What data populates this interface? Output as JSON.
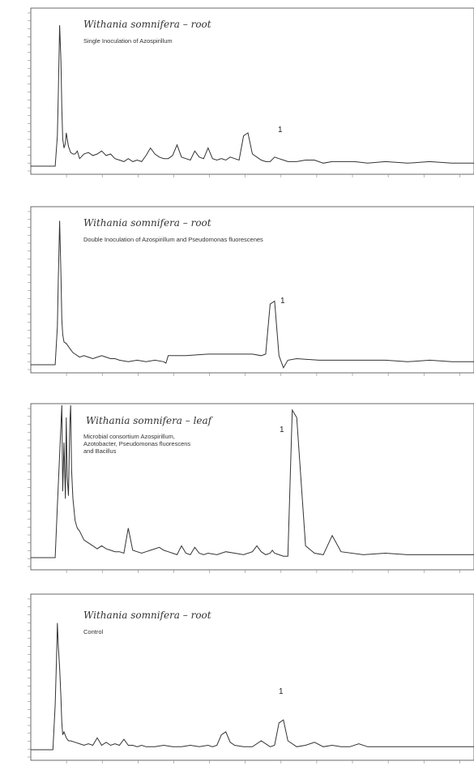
{
  "chart_data": [
    {
      "type": "line",
      "title": "Withania somnifera – root",
      "subtitle": "Single Inoculation of Azospirillum",
      "peak_label": "1",
      "line_color": "#333333",
      "xlim": [
        0,
        10
      ],
      "ylim": [
        0,
        100
      ],
      "series": [
        {
          "x": [
            0,
            0.55,
            0.6,
            0.62,
            0.65,
            0.68,
            0.7,
            0.72,
            0.75,
            0.78,
            0.8,
            0.85,
            0.9,
            0.95,
            1.0,
            1.05,
            1.1,
            1.2,
            1.3,
            1.4,
            1.5,
            1.6,
            1.7,
            1.8,
            1.9,
            2.0,
            2.1,
            2.2,
            2.3,
            2.4,
            2.5,
            2.6,
            2.7,
            2.8,
            2.9,
            3.0,
            3.1,
            3.2,
            3.3,
            3.4,
            3.5,
            3.6,
            3.7,
            3.8,
            3.9,
            4.0,
            4.1,
            4.2,
            4.3,
            4.4,
            4.5,
            4.6,
            4.7,
            4.8,
            4.9,
            5.0,
            5.1,
            5.2,
            5.3,
            5.4,
            5.5,
            5.6,
            5.7,
            5.8,
            6.0,
            6.2,
            6.4,
            6.6,
            6.8,
            7.0,
            7.3,
            7.6,
            8.0,
            8.5,
            9.0,
            9.5,
            10.0
          ],
          "y": [
            0,
            0,
            20,
            46,
            93,
            70,
            38,
            18,
            12,
            15,
            22,
            13,
            9,
            8,
            8,
            10,
            5,
            8,
            9,
            7,
            8,
            10,
            7,
            8,
            5,
            4,
            3,
            5,
            3,
            4,
            3,
            7,
            12,
            8,
            6,
            5,
            5,
            7,
            14,
            6,
            5,
            4,
            10,
            6,
            5,
            12,
            5,
            4,
            5,
            4,
            6,
            5,
            4,
            20,
            22,
            8,
            6,
            4,
            3,
            3,
            6,
            5,
            4,
            3,
            3,
            4,
            4,
            2,
            3,
            3,
            3,
            2,
            3,
            2,
            3,
            2,
            2
          ]
        }
      ]
    },
    {
      "type": "line",
      "title": "Withania somnifera – root",
      "subtitle": "Double Inoculation of Azospirillum and Pseudomonas fluorescenes",
      "peak_label": "1",
      "line_color": "#333333",
      "xlim": [
        0,
        10
      ],
      "ylim": [
        0,
        100
      ],
      "series": [
        {
          "x": [
            0,
            0.55,
            0.6,
            0.62,
            0.65,
            0.68,
            0.7,
            0.72,
            0.75,
            0.8,
            0.85,
            0.9,
            0.95,
            1.0,
            1.1,
            1.2,
            1.3,
            1.4,
            1.5,
            1.6,
            1.7,
            1.8,
            1.9,
            2.0,
            2.2,
            2.4,
            2.6,
            2.8,
            3.0,
            3.05,
            3.1,
            3.3,
            3.5,
            4.0,
            4.5,
            5.0,
            5.2,
            5.3,
            5.4,
            5.5,
            5.6,
            5.7,
            5.8,
            6.0,
            6.5,
            7.0,
            7.5,
            8.0,
            8.5,
            9.0,
            9.5,
            10.0
          ],
          "y": [
            0,
            0,
            25,
            55,
            95,
            60,
            30,
            20,
            15,
            14,
            12,
            10,
            8,
            7,
            5,
            6,
            5,
            4,
            5,
            6,
            5,
            4,
            4,
            3,
            2,
            3,
            2,
            3,
            2,
            1,
            6,
            6,
            6,
            7,
            7,
            7,
            6,
            7,
            40,
            42,
            6,
            -2,
            3,
            4,
            3,
            3,
            3,
            3,
            2,
            3,
            2,
            2
          ]
        }
      ]
    },
    {
      "type": "line",
      "title": "Withania somnifera – leaf",
      "subtitle": "Microbial consortium Azospirillum, Azotobacter, Pseudomonas fluorescens and Bacillus",
      "peak_label": "1",
      "line_color": "#333333",
      "xlim": [
        0,
        10
      ],
      "ylim": [
        0,
        100
      ],
      "series": [
        {
          "x": [
            0,
            0.55,
            0.6,
            0.65,
            0.7,
            0.72,
            0.75,
            0.78,
            0.8,
            0.82,
            0.85,
            0.88,
            0.9,
            0.92,
            0.95,
            1.0,
            1.05,
            1.1,
            1.15,
            1.2,
            1.3,
            1.4,
            1.5,
            1.6,
            1.7,
            1.8,
            1.9,
            2.0,
            2.1,
            2.2,
            2.3,
            2.4,
            2.5,
            2.6,
            2.7,
            2.8,
            2.9,
            3.0,
            3.1,
            3.2,
            3.3,
            3.4,
            3.5,
            3.6,
            3.7,
            3.8,
            3.9,
            4.0,
            4.2,
            4.4,
            4.6,
            4.8,
            5.0,
            5.1,
            5.2,
            5.3,
            5.4,
            5.45,
            5.5,
            5.6,
            5.7,
            5.8,
            5.9,
            6.0,
            6.2,
            6.4,
            6.6,
            6.8,
            7.0,
            7.5,
            8.0,
            8.5,
            9.0,
            9.5,
            10.0
          ],
          "y": [
            0,
            0,
            35,
            70,
            105,
            45,
            78,
            40,
            95,
            55,
            42,
            90,
            110,
            60,
            40,
            25,
            20,
            18,
            15,
            12,
            10,
            8,
            6,
            8,
            6,
            5,
            4,
            4,
            3,
            20,
            5,
            4,
            3,
            4,
            5,
            6,
            7,
            5,
            4,
            3,
            2,
            8,
            3,
            2,
            7,
            3,
            2,
            3,
            2,
            4,
            3,
            2,
            4,
            8,
            4,
            2,
            3,
            5,
            3,
            2,
            1,
            1,
            100,
            95,
            8,
            3,
            2,
            15,
            4,
            2,
            3,
            2,
            2,
            2,
            2
          ]
        }
      ]
    },
    {
      "type": "line",
      "title": "Withania somnifera – root",
      "subtitle": "Control",
      "peak_label": "1",
      "line_color": "#333333",
      "xlim": [
        0,
        10
      ],
      "ylim": [
        0,
        100
      ],
      "series": [
        {
          "x": [
            0,
            0.5,
            0.55,
            0.58,
            0.6,
            0.62,
            0.65,
            0.68,
            0.7,
            0.72,
            0.75,
            0.8,
            0.85,
            0.9,
            1.0,
            1.1,
            1.2,
            1.3,
            1.4,
            1.5,
            1.6,
            1.7,
            1.8,
            1.9,
            2.0,
            2.1,
            2.2,
            2.3,
            2.4,
            2.5,
            2.6,
            2.8,
            3.0,
            3.2,
            3.4,
            3.6,
            3.8,
            4.0,
            4.1,
            4.2,
            4.3,
            4.4,
            4.5,
            4.6,
            4.8,
            5.0,
            5.2,
            5.4,
            5.5,
            5.6,
            5.7,
            5.8,
            6.0,
            6.2,
            6.4,
            6.6,
            6.8,
            7.0,
            7.2,
            7.4,
            7.6,
            7.8,
            8.0,
            8.5,
            9.0,
            9.5,
            10.0
          ],
          "y": [
            0,
            0,
            30,
            60,
            85,
            70,
            55,
            35,
            18,
            10,
            12,
            8,
            6,
            6,
            5,
            4,
            3,
            4,
            3,
            8,
            3,
            5,
            3,
            4,
            3,
            7,
            3,
            3,
            2,
            3,
            2,
            2,
            3,
            2,
            2,
            3,
            2,
            3,
            2,
            3,
            10,
            12,
            5,
            3,
            2,
            2,
            6,
            2,
            3,
            18,
            20,
            6,
            2,
            3,
            5,
            2,
            3,
            2,
            2,
            4,
            2,
            2,
            2,
            2,
            2,
            2,
            2
          ]
        }
      ]
    }
  ]
}
